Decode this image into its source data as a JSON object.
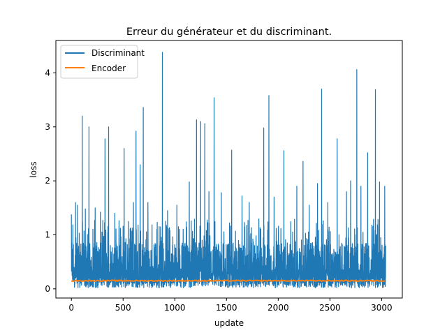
{
  "chart_data": {
    "type": "line",
    "title": "Erreur du générateur et du discriminant.",
    "xlabel": "update",
    "ylabel": "loss",
    "xlim": [
      -150,
      3200
    ],
    "ylim": [
      -0.17,
      4.6
    ],
    "x_ticks": [
      0,
      500,
      1000,
      1500,
      2000,
      2500,
      3000
    ],
    "y_ticks": [
      0,
      1,
      2,
      3,
      4
    ],
    "x_tick_labels": [
      "0",
      "500",
      "1000",
      "1500",
      "2000",
      "2500",
      "3000"
    ],
    "y_tick_labels": [
      "0",
      "1",
      "2",
      "3",
      "4"
    ],
    "grid": false,
    "legend": {
      "position": "upper-left",
      "entries": [
        "Discriminant",
        "Encoder"
      ]
    },
    "n_updates": 3040,
    "series": [
      {
        "name": "Discriminant",
        "color": "#1f77b4",
        "style": "noisy-line",
        "baseline_range": [
          0.02,
          1.1
        ],
        "peaks": [
          {
            "x": 0,
            "y": 1.38
          },
          {
            "x": 40,
            "y": 1.6
          },
          {
            "x": 60,
            "y": 1.55
          },
          {
            "x": 105,
            "y": 3.2
          },
          {
            "x": 135,
            "y": 1.48
          },
          {
            "x": 170,
            "y": 3.0
          },
          {
            "x": 230,
            "y": 1.5
          },
          {
            "x": 280,
            "y": 1.42
          },
          {
            "x": 325,
            "y": 2.78
          },
          {
            "x": 360,
            "y": 3.0
          },
          {
            "x": 420,
            "y": 1.4
          },
          {
            "x": 510,
            "y": 2.6
          },
          {
            "x": 600,
            "y": 1.6
          },
          {
            "x": 625,
            "y": 2.92
          },
          {
            "x": 665,
            "y": 2.3
          },
          {
            "x": 695,
            "y": 3.36
          },
          {
            "x": 740,
            "y": 1.6
          },
          {
            "x": 880,
            "y": 4.38
          },
          {
            "x": 930,
            "y": 1.45
          },
          {
            "x": 1020,
            "y": 1.55
          },
          {
            "x": 1140,
            "y": 1.98
          },
          {
            "x": 1210,
            "y": 3.13
          },
          {
            "x": 1250,
            "y": 3.1
          },
          {
            "x": 1290,
            "y": 3.06
          },
          {
            "x": 1330,
            "y": 1.8
          },
          {
            "x": 1380,
            "y": 3.54
          },
          {
            "x": 1450,
            "y": 1.78
          },
          {
            "x": 1550,
            "y": 2.57
          },
          {
            "x": 1650,
            "y": 1.72
          },
          {
            "x": 1720,
            "y": 1.6
          },
          {
            "x": 1860,
            "y": 2.98
          },
          {
            "x": 1910,
            "y": 3.58
          },
          {
            "x": 1960,
            "y": 1.7
          },
          {
            "x": 2055,
            "y": 2.56
          },
          {
            "x": 2180,
            "y": 1.9
          },
          {
            "x": 2240,
            "y": 2.36
          },
          {
            "x": 2300,
            "y": 1.55
          },
          {
            "x": 2380,
            "y": 1.95
          },
          {
            "x": 2420,
            "y": 3.7
          },
          {
            "x": 2480,
            "y": 1.6
          },
          {
            "x": 2570,
            "y": 2.78
          },
          {
            "x": 2660,
            "y": 1.8
          },
          {
            "x": 2700,
            "y": 2.0
          },
          {
            "x": 2760,
            "y": 4.06
          },
          {
            "x": 2800,
            "y": 1.9
          },
          {
            "x": 2865,
            "y": 2.52
          },
          {
            "x": 2940,
            "y": 3.69
          },
          {
            "x": 2980,
            "y": 1.98
          },
          {
            "x": 3030,
            "y": 1.9
          }
        ]
      },
      {
        "name": "Encoder",
        "color": "#ff7f0e",
        "style": "flat-line",
        "value": 0.15
      }
    ]
  }
}
